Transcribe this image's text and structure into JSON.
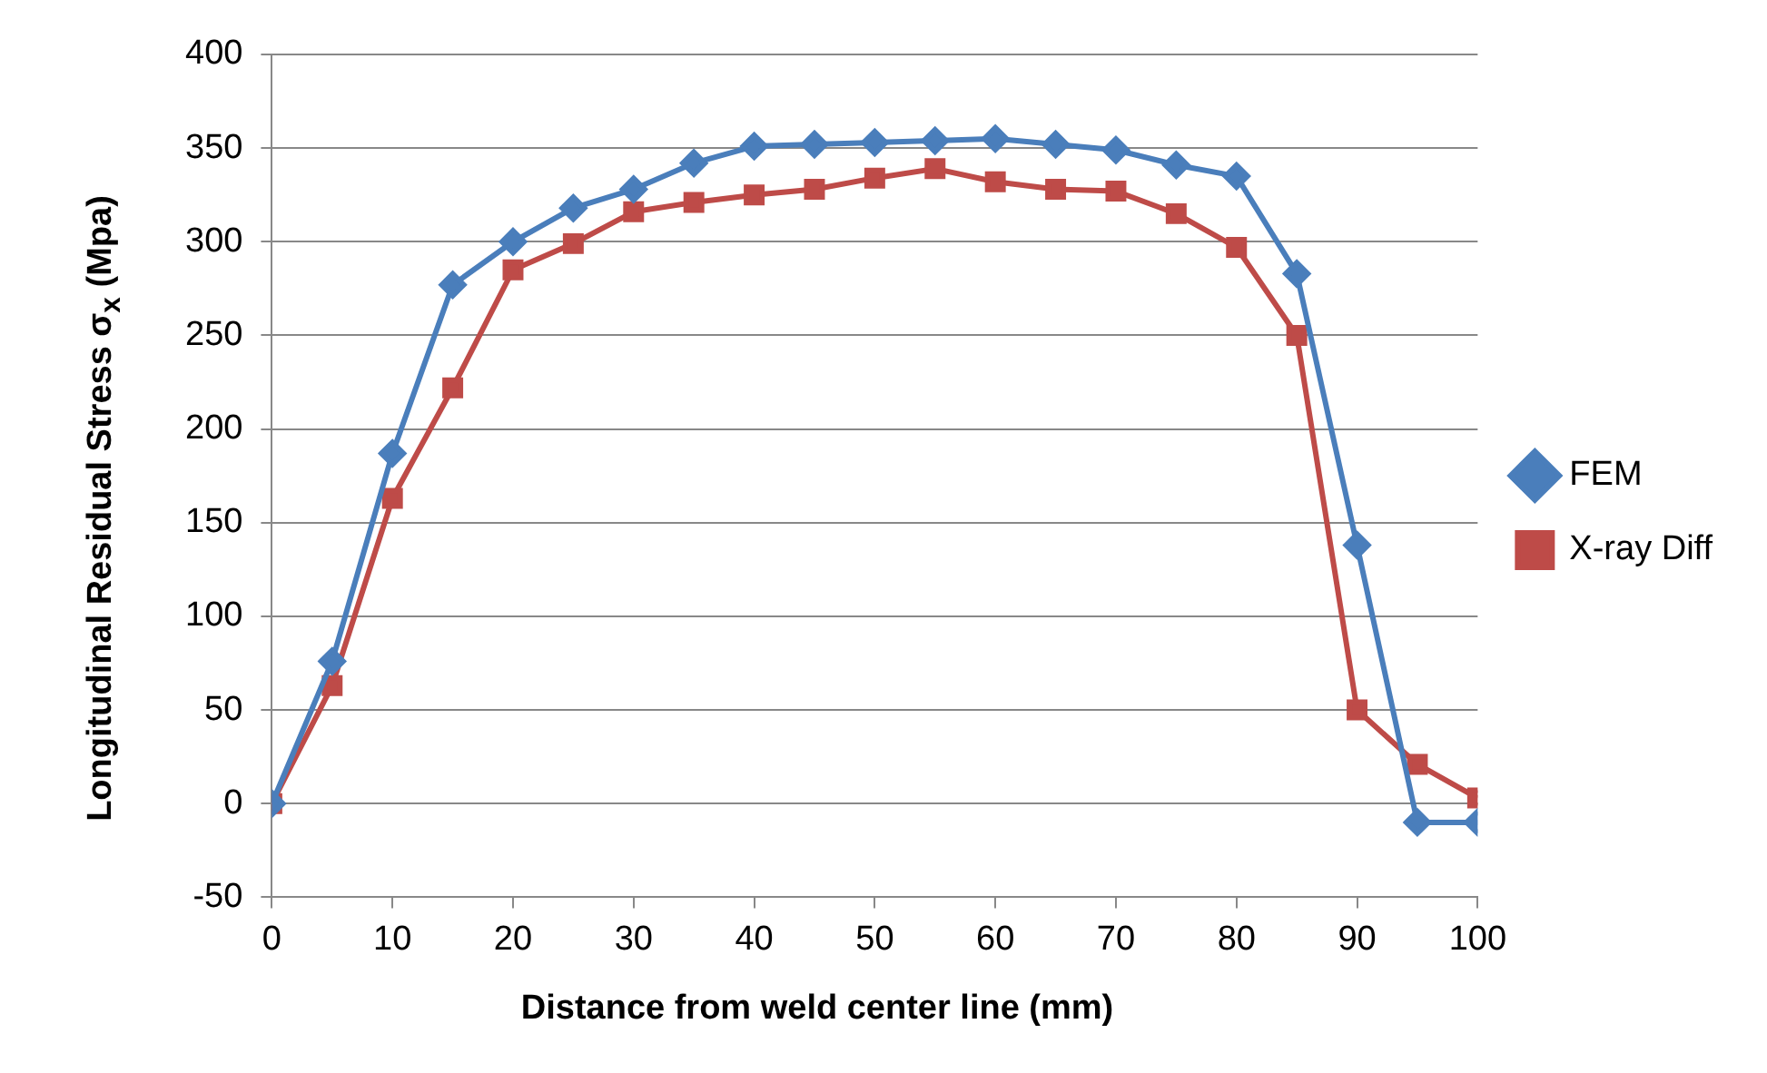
{
  "chart_data": {
    "type": "line",
    "xlabel": "Distance from weld center line (mm)",
    "ylabel": "Longitudinal Residual Stress σ$_{x}$ (Mpa)",
    "x": [
      0,
      5,
      10,
      15,
      20,
      25,
      30,
      35,
      40,
      45,
      50,
      55,
      60,
      65,
      70,
      75,
      80,
      85,
      90,
      95,
      100
    ],
    "series": [
      {
        "name": "FEM",
        "color": "#4a7ebb",
        "marker": "diamond",
        "values": [
          0,
          76,
          187,
          277,
          300,
          318,
          328,
          342,
          351,
          352,
          353,
          354,
          355,
          352,
          349,
          341,
          335,
          283,
          138,
          -10,
          -10
        ]
      },
      {
        "name": "X-ray Diff",
        "color": "#be4b48",
        "marker": "square",
        "values": [
          0,
          63,
          163,
          222,
          285,
          299,
          316,
          321,
          325,
          328,
          334,
          339,
          332,
          328,
          327,
          315,
          297,
          250,
          50,
          21,
          3
        ]
      }
    ],
    "xlim": [
      0,
      100
    ],
    "xticks": [
      0,
      10,
      20,
      30,
      40,
      50,
      60,
      70,
      80,
      90,
      100
    ],
    "ylim": [
      -50,
      400
    ],
    "yticks": [
      -50,
      0,
      50,
      100,
      150,
      200,
      250,
      300,
      350,
      400
    ],
    "grid": "y",
    "legend": "right"
  }
}
